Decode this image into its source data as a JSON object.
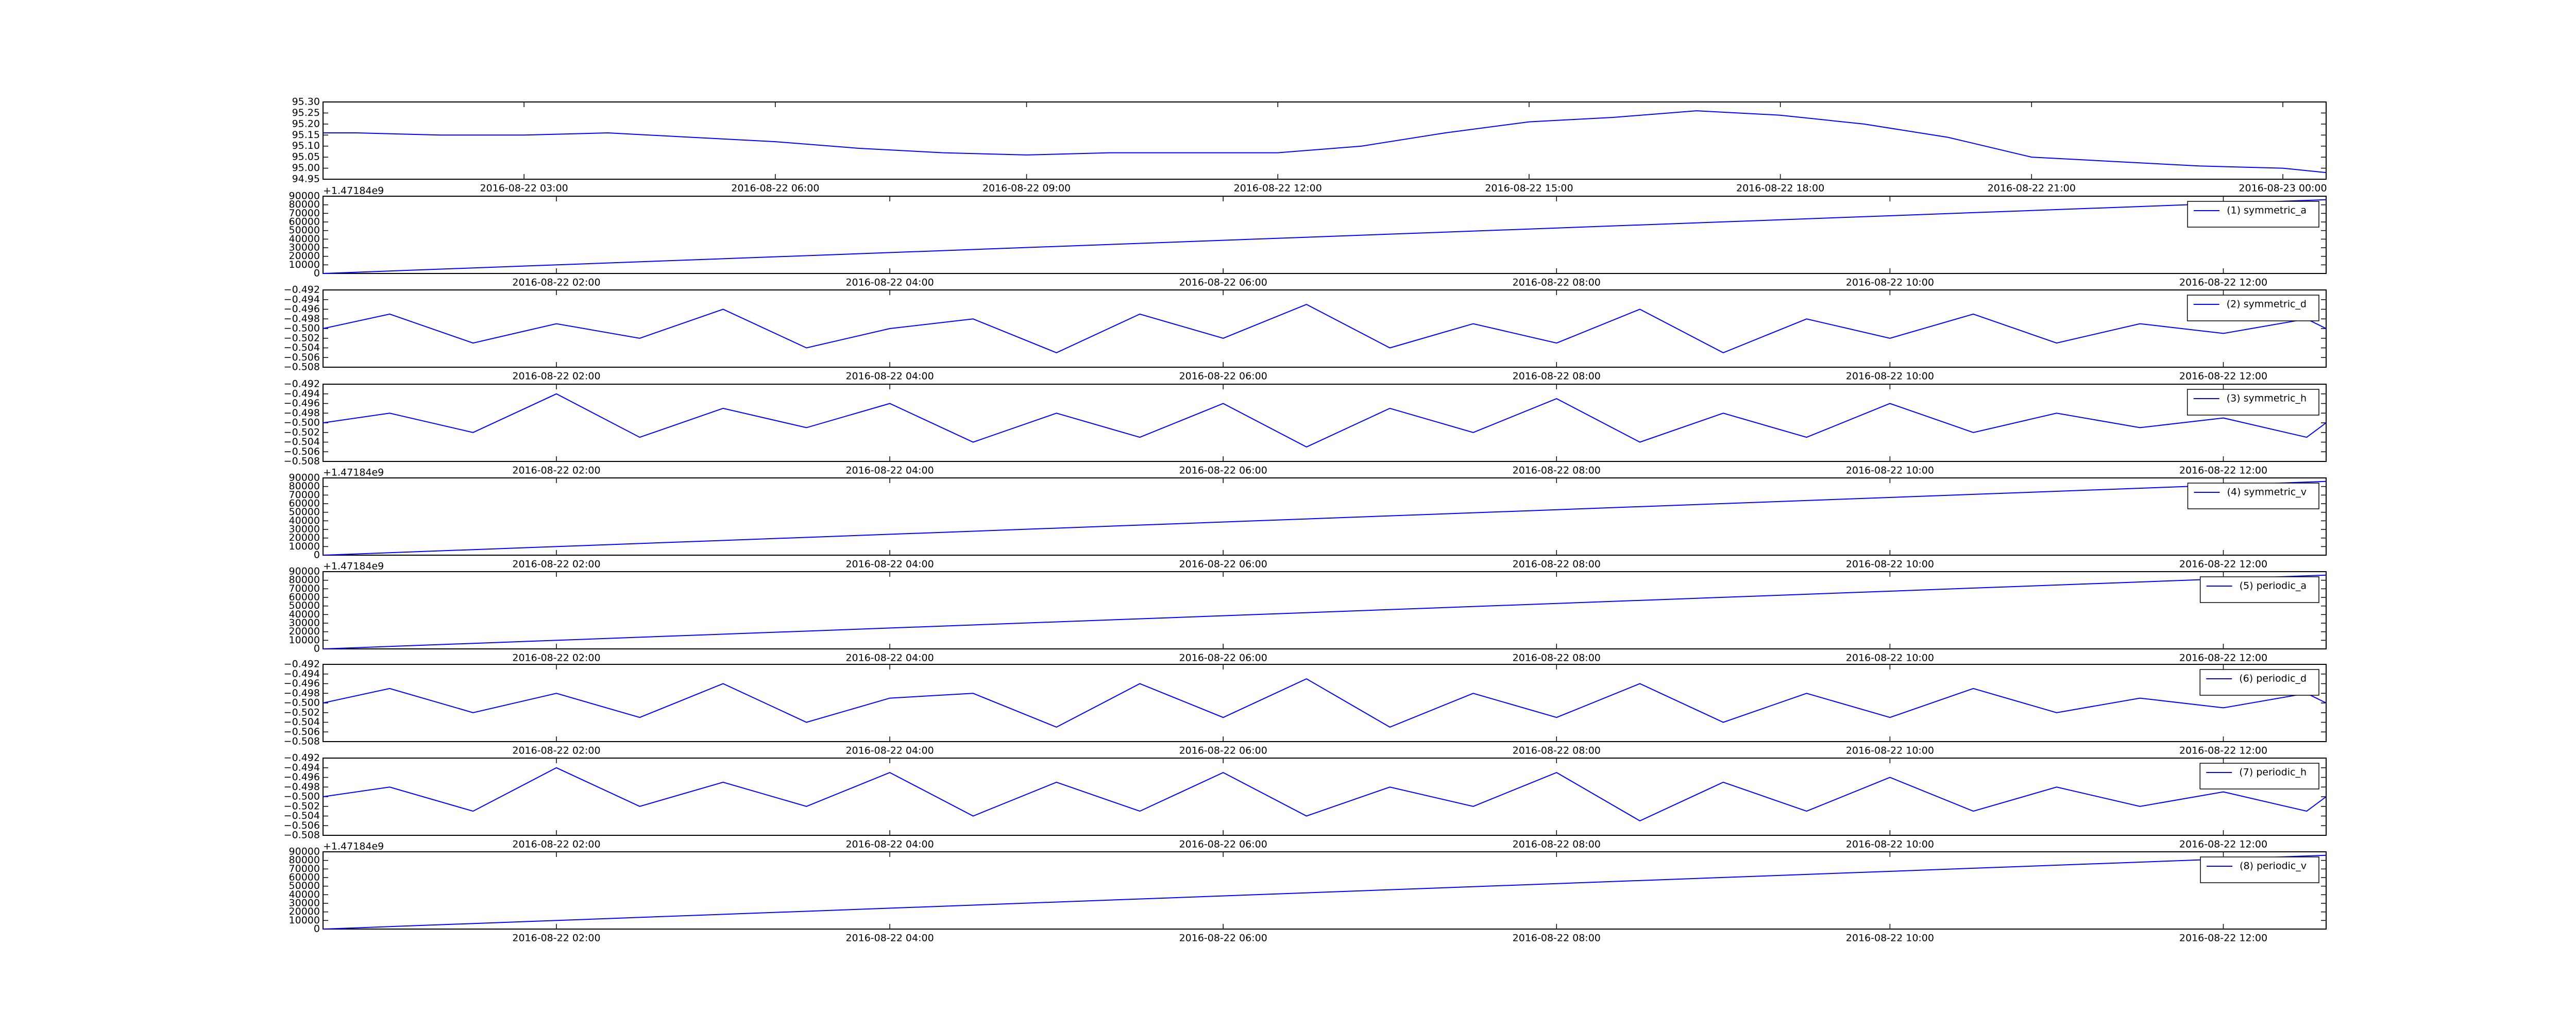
{
  "chart_data": [
    {
      "type": "line",
      "color": "#0000ff",
      "x": [
        "2016-08-22 00:36",
        "2016-08-22 01:00",
        "2016-08-22 02:00",
        "2016-08-22 03:00",
        "2016-08-22 04:00",
        "2016-08-22 05:00",
        "2016-08-22 06:00",
        "2016-08-22 07:00",
        "2016-08-22 08:00",
        "2016-08-22 09:00",
        "2016-08-22 10:00",
        "2016-08-22 11:00",
        "2016-08-22 12:00",
        "2016-08-22 13:00",
        "2016-08-22 14:00",
        "2016-08-22 15:00",
        "2016-08-22 16:00",
        "2016-08-22 17:00",
        "2016-08-22 18:00",
        "2016-08-22 19:00",
        "2016-08-22 20:00",
        "2016-08-22 21:00",
        "2016-08-22 22:00",
        "2016-08-22 23:00",
        "2016-08-23 00:00",
        "2016-08-23 00:31"
      ],
      "values": [
        95.16,
        95.16,
        95.15,
        95.15,
        95.16,
        95.14,
        95.12,
        95.09,
        95.07,
        95.06,
        95.07,
        95.07,
        95.07,
        95.1,
        95.16,
        95.21,
        95.23,
        95.26,
        95.24,
        95.2,
        95.14,
        95.05,
        95.03,
        95.01,
        95.0,
        94.98
      ],
      "xlim": [
        "2016-08-22 00:36",
        "2016-08-23 00:31"
      ],
      "xticks": [
        "2016-08-22 03:00",
        "2016-08-22 06:00",
        "2016-08-22 09:00",
        "2016-08-22 12:00",
        "2016-08-22 15:00",
        "2016-08-22 18:00",
        "2016-08-22 21:00",
        "2016-08-23 00:00"
      ],
      "ylim": [
        94.95,
        95.3
      ],
      "yticks": [
        {
          "value": 94.95,
          "label": "94.95"
        },
        {
          "value": 95.0,
          "label": "95.00"
        },
        {
          "value": 95.05,
          "label": "95.05"
        },
        {
          "value": 95.1,
          "label": "95.10"
        },
        {
          "value": 95.15,
          "label": "95.15"
        },
        {
          "value": 95.2,
          "label": "95.20"
        },
        {
          "value": 95.25,
          "label": "95.25"
        },
        {
          "value": 95.3,
          "label": "95.30"
        }
      ]
    },
    {
      "type": "line",
      "offset_text": "+1.47184e9",
      "legend": "upper right",
      "x": [
        "2016-08-22 00:36",
        "2016-08-22 12:37"
      ],
      "series": [
        {
          "name": "(1) symmetric_a",
          "color": "#0000ff",
          "values": [
            0,
            86000
          ]
        }
      ],
      "xlim": [
        "2016-08-22 00:36",
        "2016-08-22 12:37"
      ],
      "xticks": [
        "2016-08-22 02:00",
        "2016-08-22 04:00",
        "2016-08-22 06:00",
        "2016-08-22 08:00",
        "2016-08-22 10:00",
        "2016-08-22 12:00"
      ],
      "ylim": [
        0,
        90000
      ],
      "yticks": [
        0,
        10000,
        20000,
        30000,
        40000,
        50000,
        60000,
        70000,
        80000,
        90000
      ]
    },
    {
      "type": "line",
      "legend": "upper right",
      "x": [
        "2016-08-22 00:36",
        "2016-08-22 01:00",
        "2016-08-22 01:30",
        "2016-08-22 02:00",
        "2016-08-22 02:30",
        "2016-08-22 03:00",
        "2016-08-22 03:30",
        "2016-08-22 04:00",
        "2016-08-22 04:30",
        "2016-08-22 05:00",
        "2016-08-22 05:30",
        "2016-08-22 06:00",
        "2016-08-22 06:30",
        "2016-08-22 07:00",
        "2016-08-22 07:30",
        "2016-08-22 08:00",
        "2016-08-22 08:30",
        "2016-08-22 09:00",
        "2016-08-22 09:30",
        "2016-08-22 10:00",
        "2016-08-22 10:30",
        "2016-08-22 11:00",
        "2016-08-22 11:30",
        "2016-08-22 12:00",
        "2016-08-22 12:30",
        "2016-08-22 12:37"
      ],
      "series": [
        {
          "name": "(2) symmetric_d",
          "color": "#0000ff",
          "values": [
            -0.5,
            -0.497,
            -0.503,
            -0.499,
            -0.502,
            -0.496,
            -0.504,
            -0.5,
            -0.498,
            -0.505,
            -0.497,
            -0.502,
            -0.495,
            -0.504,
            -0.499,
            -0.503,
            -0.496,
            -0.505,
            -0.498,
            -0.502,
            -0.497,
            -0.503,
            -0.499,
            -0.501,
            -0.498,
            -0.5
          ]
        }
      ],
      "xlim": [
        "2016-08-22 00:36",
        "2016-08-22 12:37"
      ],
      "xticks": [
        "2016-08-22 02:00",
        "2016-08-22 04:00",
        "2016-08-22 06:00",
        "2016-08-22 08:00",
        "2016-08-22 10:00",
        "2016-08-22 12:00"
      ],
      "ylim": [
        -0.508,
        -0.492
      ],
      "yticks": [
        {
          "value": -0.508,
          "label": "−0.508"
        },
        {
          "value": -0.506,
          "label": "−0.506"
        },
        {
          "value": -0.504,
          "label": "−0.504"
        },
        {
          "value": -0.502,
          "label": "−0.502"
        },
        {
          "value": -0.5,
          "label": "−0.500"
        },
        {
          "value": -0.498,
          "label": "−0.498"
        },
        {
          "value": -0.496,
          "label": "−0.496"
        },
        {
          "value": -0.494,
          "label": "−0.494"
        },
        {
          "value": -0.492,
          "label": "−0.492"
        }
      ]
    },
    {
      "type": "line",
      "legend": "upper right",
      "x": [
        "2016-08-22 00:36",
        "2016-08-22 01:00",
        "2016-08-22 01:30",
        "2016-08-22 02:00",
        "2016-08-22 02:30",
        "2016-08-22 03:00",
        "2016-08-22 03:30",
        "2016-08-22 04:00",
        "2016-08-22 04:30",
        "2016-08-22 05:00",
        "2016-08-22 05:30",
        "2016-08-22 06:00",
        "2016-08-22 06:30",
        "2016-08-22 07:00",
        "2016-08-22 07:30",
        "2016-08-22 08:00",
        "2016-08-22 08:30",
        "2016-08-22 09:00",
        "2016-08-22 09:30",
        "2016-08-22 10:00",
        "2016-08-22 10:30",
        "2016-08-22 11:00",
        "2016-08-22 11:30",
        "2016-08-22 12:00",
        "2016-08-22 12:30",
        "2016-08-22 12:37"
      ],
      "series": [
        {
          "name": "(3) symmetric_h",
          "color": "#0000ff",
          "values": [
            -0.5,
            -0.498,
            -0.502,
            -0.494,
            -0.503,
            -0.497,
            -0.501,
            -0.496,
            -0.504,
            -0.498,
            -0.503,
            -0.496,
            -0.505,
            -0.497,
            -0.502,
            -0.495,
            -0.504,
            -0.498,
            -0.503,
            -0.496,
            -0.502,
            -0.498,
            -0.501,
            -0.499,
            -0.503,
            -0.5
          ]
        }
      ],
      "xlim": [
        "2016-08-22 00:36",
        "2016-08-22 12:37"
      ],
      "xticks": [
        "2016-08-22 02:00",
        "2016-08-22 04:00",
        "2016-08-22 06:00",
        "2016-08-22 08:00",
        "2016-08-22 10:00",
        "2016-08-22 12:00"
      ],
      "ylim": [
        -0.508,
        -0.492
      ],
      "yticks": [
        {
          "value": -0.508,
          "label": "−0.508"
        },
        {
          "value": -0.506,
          "label": "−0.506"
        },
        {
          "value": -0.504,
          "label": "−0.504"
        },
        {
          "value": -0.502,
          "label": "−0.502"
        },
        {
          "value": -0.5,
          "label": "−0.500"
        },
        {
          "value": -0.498,
          "label": "−0.498"
        },
        {
          "value": -0.496,
          "label": "−0.496"
        },
        {
          "value": -0.494,
          "label": "−0.494"
        },
        {
          "value": -0.492,
          "label": "−0.492"
        }
      ]
    },
    {
      "type": "line",
      "offset_text": "+1.47184e9",
      "legend": "upper right",
      "x": [
        "2016-08-22 00:36",
        "2016-08-22 12:37"
      ],
      "series": [
        {
          "name": "(4) symmetric_v",
          "color": "#0000ff",
          "values": [
            0,
            86000
          ]
        }
      ],
      "xlim": [
        "2016-08-22 00:36",
        "2016-08-22 12:37"
      ],
      "xticks": [
        "2016-08-22 02:00",
        "2016-08-22 04:00",
        "2016-08-22 06:00",
        "2016-08-22 08:00",
        "2016-08-22 10:00",
        "2016-08-22 12:00"
      ],
      "ylim": [
        0,
        90000
      ],
      "yticks": [
        0,
        10000,
        20000,
        30000,
        40000,
        50000,
        60000,
        70000,
        80000,
        90000
      ]
    },
    {
      "type": "line",
      "offset_text": "+1.47184e9",
      "legend": "upper right",
      "x": [
        "2016-08-22 00:36",
        "2016-08-22 12:37"
      ],
      "series": [
        {
          "name": "(5) periodic_a",
          "color": "#0000ff",
          "values": [
            0,
            86000
          ]
        }
      ],
      "xlim": [
        "2016-08-22 00:36",
        "2016-08-22 12:37"
      ],
      "xticks": [
        "2016-08-22 02:00",
        "2016-08-22 04:00",
        "2016-08-22 06:00",
        "2016-08-22 08:00",
        "2016-08-22 10:00",
        "2016-08-22 12:00"
      ],
      "ylim": [
        0,
        90000
      ],
      "yticks": [
        0,
        10000,
        20000,
        30000,
        40000,
        50000,
        60000,
        70000,
        80000,
        90000
      ]
    },
    {
      "type": "line",
      "legend": "upper right",
      "x": [
        "2016-08-22 00:36",
        "2016-08-22 01:00",
        "2016-08-22 01:30",
        "2016-08-22 02:00",
        "2016-08-22 02:30",
        "2016-08-22 03:00",
        "2016-08-22 03:30",
        "2016-08-22 04:00",
        "2016-08-22 04:30",
        "2016-08-22 05:00",
        "2016-08-22 05:30",
        "2016-08-22 06:00",
        "2016-08-22 06:30",
        "2016-08-22 07:00",
        "2016-08-22 07:30",
        "2016-08-22 08:00",
        "2016-08-22 08:30",
        "2016-08-22 09:00",
        "2016-08-22 09:30",
        "2016-08-22 10:00",
        "2016-08-22 10:30",
        "2016-08-22 11:00",
        "2016-08-22 11:30",
        "2016-08-22 12:00",
        "2016-08-22 12:30",
        "2016-08-22 12:37"
      ],
      "series": [
        {
          "name": "(6) periodic_d",
          "color": "#0000ff",
          "values": [
            -0.5,
            -0.497,
            -0.502,
            -0.498,
            -0.503,
            -0.496,
            -0.504,
            -0.499,
            -0.498,
            -0.505,
            -0.496,
            -0.503,
            -0.495,
            -0.505,
            -0.498,
            -0.503,
            -0.496,
            -0.504,
            -0.498,
            -0.503,
            -0.497,
            -0.502,
            -0.499,
            -0.501,
            -0.498,
            -0.5
          ]
        }
      ],
      "xlim": [
        "2016-08-22 00:36",
        "2016-08-22 12:37"
      ],
      "xticks": [
        "2016-08-22 02:00",
        "2016-08-22 04:00",
        "2016-08-22 06:00",
        "2016-08-22 08:00",
        "2016-08-22 10:00",
        "2016-08-22 12:00"
      ],
      "ylim": [
        -0.508,
        -0.492
      ],
      "yticks": [
        {
          "value": -0.508,
          "label": "−0.508"
        },
        {
          "value": -0.506,
          "label": "−0.506"
        },
        {
          "value": -0.504,
          "label": "−0.504"
        },
        {
          "value": -0.502,
          "label": "−0.502"
        },
        {
          "value": -0.5,
          "label": "−0.500"
        },
        {
          "value": -0.498,
          "label": "−0.498"
        },
        {
          "value": -0.496,
          "label": "−0.496"
        },
        {
          "value": -0.494,
          "label": "−0.494"
        },
        {
          "value": -0.492,
          "label": "−0.492"
        }
      ]
    },
    {
      "type": "line",
      "legend": "upper right",
      "x": [
        "2016-08-22 00:36",
        "2016-08-22 01:00",
        "2016-08-22 01:30",
        "2016-08-22 02:00",
        "2016-08-22 02:30",
        "2016-08-22 03:00",
        "2016-08-22 03:30",
        "2016-08-22 04:00",
        "2016-08-22 04:30",
        "2016-08-22 05:00",
        "2016-08-22 05:30",
        "2016-08-22 06:00",
        "2016-08-22 06:30",
        "2016-08-22 07:00",
        "2016-08-22 07:30",
        "2016-08-22 08:00",
        "2016-08-22 08:30",
        "2016-08-22 09:00",
        "2016-08-22 09:30",
        "2016-08-22 10:00",
        "2016-08-22 10:30",
        "2016-08-22 11:00",
        "2016-08-22 11:30",
        "2016-08-22 12:00",
        "2016-08-22 12:30",
        "2016-08-22 12:37"
      ],
      "series": [
        {
          "name": "(7) periodic_h",
          "color": "#0000ff",
          "values": [
            -0.5,
            -0.498,
            -0.503,
            -0.494,
            -0.502,
            -0.497,
            -0.502,
            -0.495,
            -0.504,
            -0.497,
            -0.503,
            -0.495,
            -0.504,
            -0.498,
            -0.502,
            -0.495,
            -0.505,
            -0.497,
            -0.503,
            -0.496,
            -0.503,
            -0.498,
            -0.502,
            -0.499,
            -0.503,
            -0.5
          ]
        }
      ],
      "xlim": [
        "2016-08-22 00:36",
        "2016-08-22 12:37"
      ],
      "xticks": [
        "2016-08-22 02:00",
        "2016-08-22 04:00",
        "2016-08-22 06:00",
        "2016-08-22 08:00",
        "2016-08-22 10:00",
        "2016-08-22 12:00"
      ],
      "ylim": [
        -0.508,
        -0.492
      ],
      "yticks": [
        {
          "value": -0.508,
          "label": "−0.508"
        },
        {
          "value": -0.506,
          "label": "−0.506"
        },
        {
          "value": -0.504,
          "label": "−0.504"
        },
        {
          "value": -0.502,
          "label": "−0.502"
        },
        {
          "value": -0.5,
          "label": "−0.500"
        },
        {
          "value": -0.498,
          "label": "−0.498"
        },
        {
          "value": -0.496,
          "label": "−0.496"
        },
        {
          "value": -0.494,
          "label": "−0.494"
        },
        {
          "value": -0.492,
          "label": "−0.492"
        }
      ]
    },
    {
      "type": "line",
      "offset_text": "+1.47184e9",
      "legend": "upper right",
      "x": [
        "2016-08-22 00:36",
        "2016-08-22 12:37"
      ],
      "series": [
        {
          "name": "(8) periodic_v",
          "color": "#0000ff",
          "values": [
            0,
            86000
          ]
        }
      ],
      "xlim": [
        "2016-08-22 00:36",
        "2016-08-22 12:37"
      ],
      "xticks": [
        "2016-08-22 02:00",
        "2016-08-22 04:00",
        "2016-08-22 06:00",
        "2016-08-22 08:00",
        "2016-08-22 10:00",
        "2016-08-22 12:00"
      ],
      "ylim": [
        0,
        90000
      ],
      "yticks": [
        0,
        10000,
        20000,
        30000,
        40000,
        50000,
        60000,
        70000,
        80000,
        90000
      ]
    }
  ]
}
